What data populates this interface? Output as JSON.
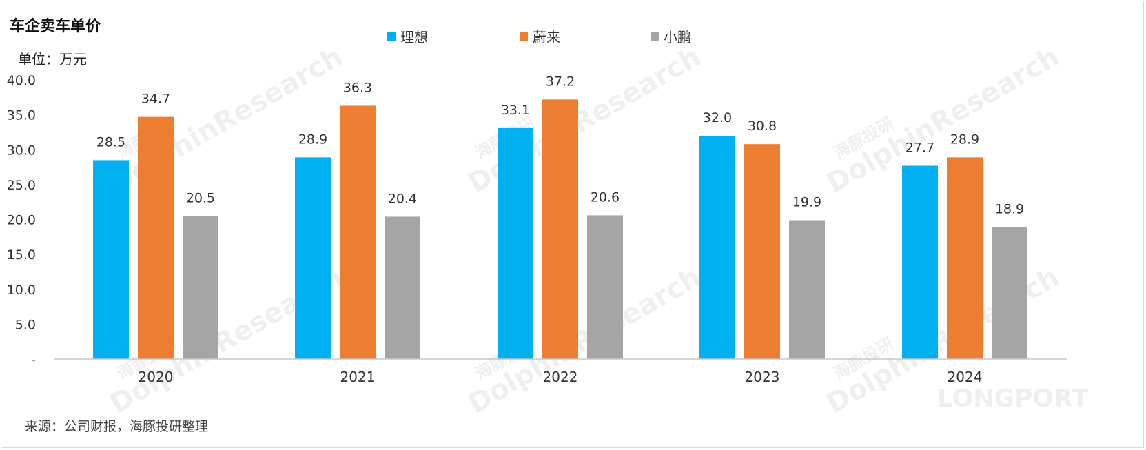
{
  "title": "车企卖车单价",
  "unit_label": "单位：万元",
  "source": "来源：公司财报，海豚投研整理",
  "watermark": {
    "cn": "海豚投研",
    "en": "DolphinResearch",
    "brand": "LONGPORT"
  },
  "chart_data": {
    "type": "bar",
    "categories": [
      "2020",
      "2021",
      "2022",
      "2023",
      "2024"
    ],
    "series": [
      {
        "name": "理想",
        "color": "#00B0F0",
        "values": [
          28.5,
          28.9,
          33.1,
          32.0,
          27.7
        ]
      },
      {
        "name": "蔚来",
        "color": "#ED7D31",
        "values": [
          34.7,
          36.3,
          37.2,
          30.8,
          28.9
        ]
      },
      {
        "name": "小鹏",
        "color": "#A5A5A5",
        "values": [
          20.5,
          20.4,
          20.6,
          19.9,
          18.9
        ]
      }
    ],
    "ylim": [
      0,
      40
    ],
    "yticks": [
      "-",
      "5.0",
      "10.0",
      "15.0",
      "20.0",
      "25.0",
      "30.0",
      "35.0",
      "40.0"
    ],
    "grid": false,
    "legend": "top-center"
  }
}
